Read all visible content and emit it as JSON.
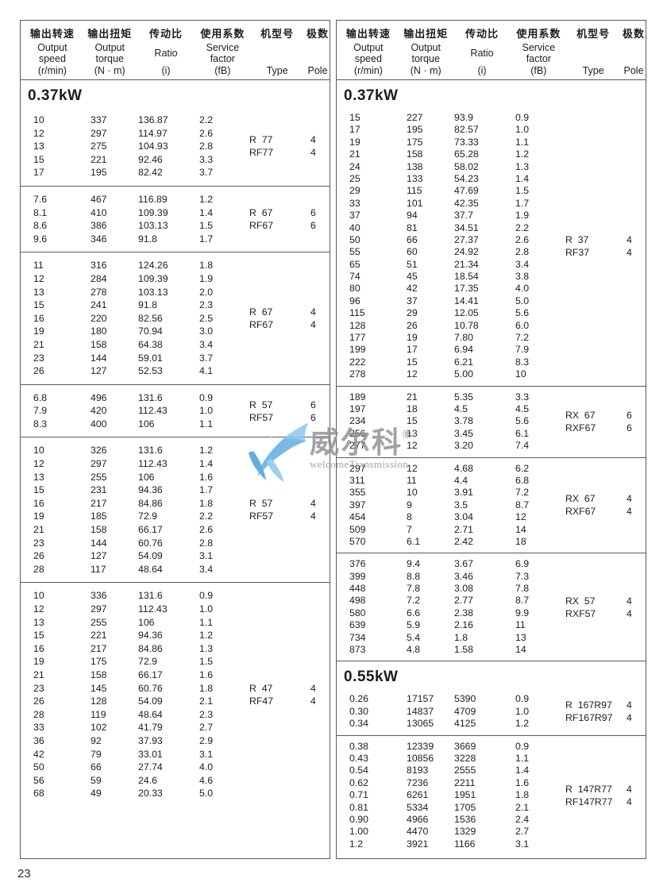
{
  "page_number": "23",
  "colors": {
    "border": "#5a5a5a",
    "text": "#1c1c1c",
    "watermark_blue_dark": "#4aa0da",
    "watermark_blue_light": "#8cc6ec",
    "watermark_gray": "#8f8f8f"
  },
  "table_header": {
    "columns": [
      {
        "zh": "输出转速",
        "en": [
          "Output",
          "speed"
        ],
        "unit": "(r/min)"
      },
      {
        "zh": "输出扭矩",
        "en": [
          "Output",
          "torque"
        ],
        "unit": "(N · m)"
      },
      {
        "zh": "传动比",
        "en": [
          "Ratio"
        ],
        "unit": "(i)"
      },
      {
        "zh": "使用系数",
        "en": [
          "Service",
          "factor"
        ],
        "unit": "(fB)"
      },
      {
        "zh": "机型号",
        "en": [],
        "unit": "Type"
      },
      {
        "zh": "极数",
        "en": [],
        "unit": "Pole"
      }
    ]
  },
  "panels": [
    {
      "name": "left",
      "sections": [
        {
          "title": "0.37kW",
          "groups": [
            {
              "rows": [
                [
                  "10",
                  "337",
                  "136.87",
                  "2.2"
                ],
                [
                  "12",
                  "297",
                  "114.97",
                  "2.6"
                ],
                [
                  "13",
                  "275",
                  "104.93",
                  "2.8"
                ],
                [
                  "15",
                  "221",
                  "92.46",
                  "3.3"
                ],
                [
                  "17",
                  "195",
                  "82.42",
                  "3.7"
                ]
              ],
              "types": [
                {
                  "type": "R  77",
                  "pole": "4"
                },
                {
                  "type": "RF77",
                  "pole": "4"
                }
              ]
            },
            {
              "rows": [
                [
                  "7.6",
                  "467",
                  "116.89",
                  "1.2"
                ],
                [
                  "8.1",
                  "410",
                  "109.39",
                  "1.4"
                ],
                [
                  "8.6",
                  "386",
                  "103.13",
                  "1.5"
                ],
                [
                  "9.6",
                  "346",
                  "91.8",
                  "1.7"
                ]
              ],
              "types": [
                {
                  "type": "R  67",
                  "pole": "6"
                },
                {
                  "type": "RF67",
                  "pole": "6"
                }
              ]
            },
            {
              "rows": [
                [
                  "11",
                  "316",
                  "124.26",
                  "1.8"
                ],
                [
                  "12",
                  "284",
                  "109.39",
                  "1.9"
                ],
                [
                  "13",
                  "278",
                  "103.13",
                  "2.0"
                ],
                [
                  "15",
                  "241",
                  "91.8",
                  "2.3"
                ],
                [
                  "16",
                  "220",
                  "82.56",
                  "2.5"
                ],
                [
                  "19",
                  "180",
                  "70.94",
                  "3.0"
                ],
                [
                  "21",
                  "158",
                  "64.38",
                  "3.4"
                ],
                [
                  "23",
                  "144",
                  "59.01",
                  "3.7"
                ],
                [
                  "26",
                  "127",
                  "52.53",
                  "4.1"
                ]
              ],
              "types": [
                {
                  "type": "R  67",
                  "pole": "4"
                },
                {
                  "type": "RF67",
                  "pole": "4"
                }
              ]
            },
            {
              "rows": [
                [
                  "6.8",
                  "496",
                  "131.6",
                  "0.9"
                ],
                [
                  "7.9",
                  "420",
                  "112.43",
                  "1.0"
                ],
                [
                  "8.3",
                  "400",
                  "106",
                  "1.1"
                ]
              ],
              "types": [
                {
                  "type": "R  57",
                  "pole": "6"
                },
                {
                  "type": "RF57",
                  "pole": "6"
                }
              ]
            },
            {
              "rows": [
                [
                  "10",
                  "326",
                  "131.6",
                  "1.2"
                ],
                [
                  "12",
                  "297",
                  "112.43",
                  "1.4"
                ],
                [
                  "13",
                  "255",
                  "106",
                  "1.6"
                ],
                [
                  "15",
                  "231",
                  "94.36",
                  "1.7"
                ],
                [
                  "16",
                  "217",
                  "84.86",
                  "1.8"
                ],
                [
                  "19",
                  "185",
                  "72.9",
                  "2.2"
                ],
                [
                  "21",
                  "158",
                  "66.17",
                  "2.6"
                ],
                [
                  "23",
                  "144",
                  "60.76",
                  "2.8"
                ],
                [
                  "26",
                  "127",
                  "54.09",
                  "3.1"
                ],
                [
                  "28",
                  "117",
                  "48.64",
                  "3.4"
                ]
              ],
              "types": [
                {
                  "type": "R  57",
                  "pole": "4"
                },
                {
                  "type": "RF57",
                  "pole": "4"
                }
              ]
            },
            {
              "rows": [
                [
                  "10",
                  "336",
                  "131.6",
                  "0.9"
                ],
                [
                  "12",
                  "297",
                  "112.43",
                  "1.0"
                ],
                [
                  "13",
                  "255",
                  "106",
                  "1.1"
                ],
                [
                  "15",
                  "221",
                  "94.36",
                  "1.2"
                ],
                [
                  "16",
                  "217",
                  "84.86",
                  "1.3"
                ],
                [
                  "19",
                  "175",
                  "72.9",
                  "1.5"
                ],
                [
                  "21",
                  "158",
                  "66.17",
                  "1.6"
                ],
                [
                  "23",
                  "145",
                  "60.76",
                  "1.8"
                ],
                [
                  "26",
                  "128",
                  "54.09",
                  "2.1"
                ],
                [
                  "28",
                  "119",
                  "48.64",
                  "2.3"
                ],
                [
                  "33",
                  "102",
                  "41.79",
                  "2.7"
                ],
                [
                  "36",
                  "92",
                  "37.93",
                  "2.9"
                ],
                [
                  "42",
                  "79",
                  "33.01",
                  "3.1"
                ],
                [
                  "50",
                  "66",
                  "27.74",
                  "4.0"
                ],
                [
                  "56",
                  "59",
                  "24.6",
                  "4.6"
                ],
                [
                  "68",
                  "49",
                  "20.33",
                  "5.0"
                ]
              ],
              "types": [
                {
                  "type": "R  47",
                  "pole": "4"
                },
                {
                  "type": "RF47",
                  "pole": "4"
                }
              ]
            }
          ]
        }
      ]
    },
    {
      "name": "right",
      "sections": [
        {
          "title": "0.37kW",
          "groups": [
            {
              "rows": [
                [
                  "15",
                  "227",
                  "93.9",
                  "0.9"
                ],
                [
                  "17",
                  "195",
                  "82.57",
                  "1.0"
                ],
                [
                  "19",
                  "175",
                  "73.33",
                  "1.1"
                ],
                [
                  "21",
                  "158",
                  "65.28",
                  "1.2"
                ],
                [
                  "24",
                  "138",
                  "58.02",
                  "1.3"
                ],
                [
                  "25",
                  "133",
                  "54.23",
                  "1.4"
                ],
                [
                  "29",
                  "115",
                  "47.69",
                  "1.5"
                ],
                [
                  "33",
                  "101",
                  "42.35",
                  "1.7"
                ],
                [
                  "37",
                  "94",
                  "37.7",
                  "1.9"
                ],
                [
                  "40",
                  "81",
                  "34.51",
                  "2.2"
                ],
                [
                  "50",
                  "66",
                  "27.37",
                  "2.6"
                ],
                [
                  "55",
                  "60",
                  "24.92",
                  "2.8"
                ],
                [
                  "65",
                  "51",
                  "21.34",
                  "3.4"
                ],
                [
                  "74",
                  "45",
                  "18.54",
                  "3.8"
                ],
                [
                  "80",
                  "42",
                  "17.35",
                  "4.0"
                ],
                [
                  "96",
                  "37",
                  "14.41",
                  "5.0"
                ],
                [
                  "115",
                  "29",
                  "12.05",
                  "5.6"
                ],
                [
                  "128",
                  "26",
                  "10.78",
                  "6.0"
                ],
                [
                  "177",
                  "19",
                  "7.80",
                  "7.2"
                ],
                [
                  "199",
                  "17",
                  "6.94",
                  "7.9"
                ],
                [
                  "222",
                  "15",
                  "6.21",
                  "8.3"
                ],
                [
                  "278",
                  "12",
                  "5.00",
                  "10"
                ]
              ],
              "types": [
                {
                  "type": "R  37",
                  "pole": "4"
                },
                {
                  "type": "RF37",
                  "pole": "4"
                }
              ]
            },
            {
              "rows": [
                [
                  "189",
                  "21",
                  "5.35",
                  "3.3"
                ],
                [
                  "197",
                  "18",
                  "4.5",
                  "4.5"
                ],
                [
                  "234",
                  "15",
                  "3.78",
                  "5.6"
                ],
                [
                  "256",
                  "13",
                  "3.45",
                  "6.1"
                ],
                [
                  "277",
                  "12",
                  "3.20",
                  "7.4"
                ]
              ],
              "types": [
                {
                  "type": "RX  67",
                  "pole": "6"
                },
                {
                  "type": "RXF67",
                  "pole": "6"
                }
              ]
            },
            {
              "rows": [
                [
                  "297",
                  "12",
                  "4.68",
                  "6.2"
                ],
                [
                  "311",
                  "11",
                  "4.4",
                  "6.8"
                ],
                [
                  "355",
                  "10",
                  "3.91",
                  "7.2"
                ],
                [
                  "397",
                  "9",
                  "3.5",
                  "8.7"
                ],
                [
                  "454",
                  "8",
                  "3.04",
                  "12"
                ],
                [
                  "509",
                  "7",
                  "2.71",
                  "14"
                ],
                [
                  "570",
                  "6.1",
                  "2.42",
                  "18"
                ]
              ],
              "types": [
                {
                  "type": "RX  67",
                  "pole": "4"
                },
                {
                  "type": "RXF67",
                  "pole": "4"
                }
              ]
            },
            {
              "rows": [
                [
                  "376",
                  "9.4",
                  "3.67",
                  "6.9"
                ],
                [
                  "399",
                  "8.8",
                  "3.46",
                  "7.3"
                ],
                [
                  "448",
                  "7.8",
                  "3.08",
                  "7.8"
                ],
                [
                  "498",
                  "7.2",
                  "2.77",
                  "8.7"
                ],
                [
                  "580",
                  "6.6",
                  "2.38",
                  "9.9"
                ],
                [
                  "639",
                  "5.9",
                  "2.16",
                  "11"
                ],
                [
                  "734",
                  "5.4",
                  "1.8",
                  "13"
                ],
                [
                  "873",
                  "4.8",
                  "1.58",
                  "14"
                ]
              ],
              "types": [
                {
                  "type": "RX  57",
                  "pole": "4"
                },
                {
                  "type": "RXF57",
                  "pole": "4"
                }
              ]
            }
          ]
        },
        {
          "title": "0.55kW",
          "groups": [
            {
              "rows": [
                [
                  "0.26",
                  "17157",
                  "5390",
                  "0.9"
                ],
                [
                  "0.30",
                  "14837",
                  "4709",
                  "1.0"
                ],
                [
                  "0.34",
                  "13065",
                  "4125",
                  "1.2"
                ]
              ],
              "types": [
                {
                  "type": "R  167R97",
                  "pole": "4"
                },
                {
                  "type": "RF167R97",
                  "pole": "4"
                }
              ]
            },
            {
              "rows": [
                [
                  "0.38",
                  "12339",
                  "3669",
                  "0.9"
                ],
                [
                  "0.43",
                  "10856",
                  "3228",
                  "1.1"
                ],
                [
                  "0.54",
                  "8193",
                  "2555",
                  "1.4"
                ],
                [
                  "0.62",
                  "7236",
                  "2211",
                  "1.6"
                ],
                [
                  "0.71",
                  "6261",
                  "1951",
                  "1.8"
                ],
                [
                  "0.81",
                  "5334",
                  "1705",
                  "2.1"
                ],
                [
                  "0.90",
                  "4966",
                  "1536",
                  "2.4"
                ],
                [
                  "1.00",
                  "4470",
                  "1329",
                  "2.7"
                ],
                [
                  "1.2",
                  "3921",
                  "1166",
                  "3.1"
                ]
              ],
              "types": [
                {
                  "type": "R  147R77",
                  "pole": "4"
                },
                {
                  "type": "RF147R77",
                  "pole": "4"
                }
              ]
            }
          ]
        }
      ]
    }
  ],
  "watermark": {
    "brand_zh": "威尔科",
    "registered_mark": "®",
    "brand_en": "welcomeTransmission"
  }
}
